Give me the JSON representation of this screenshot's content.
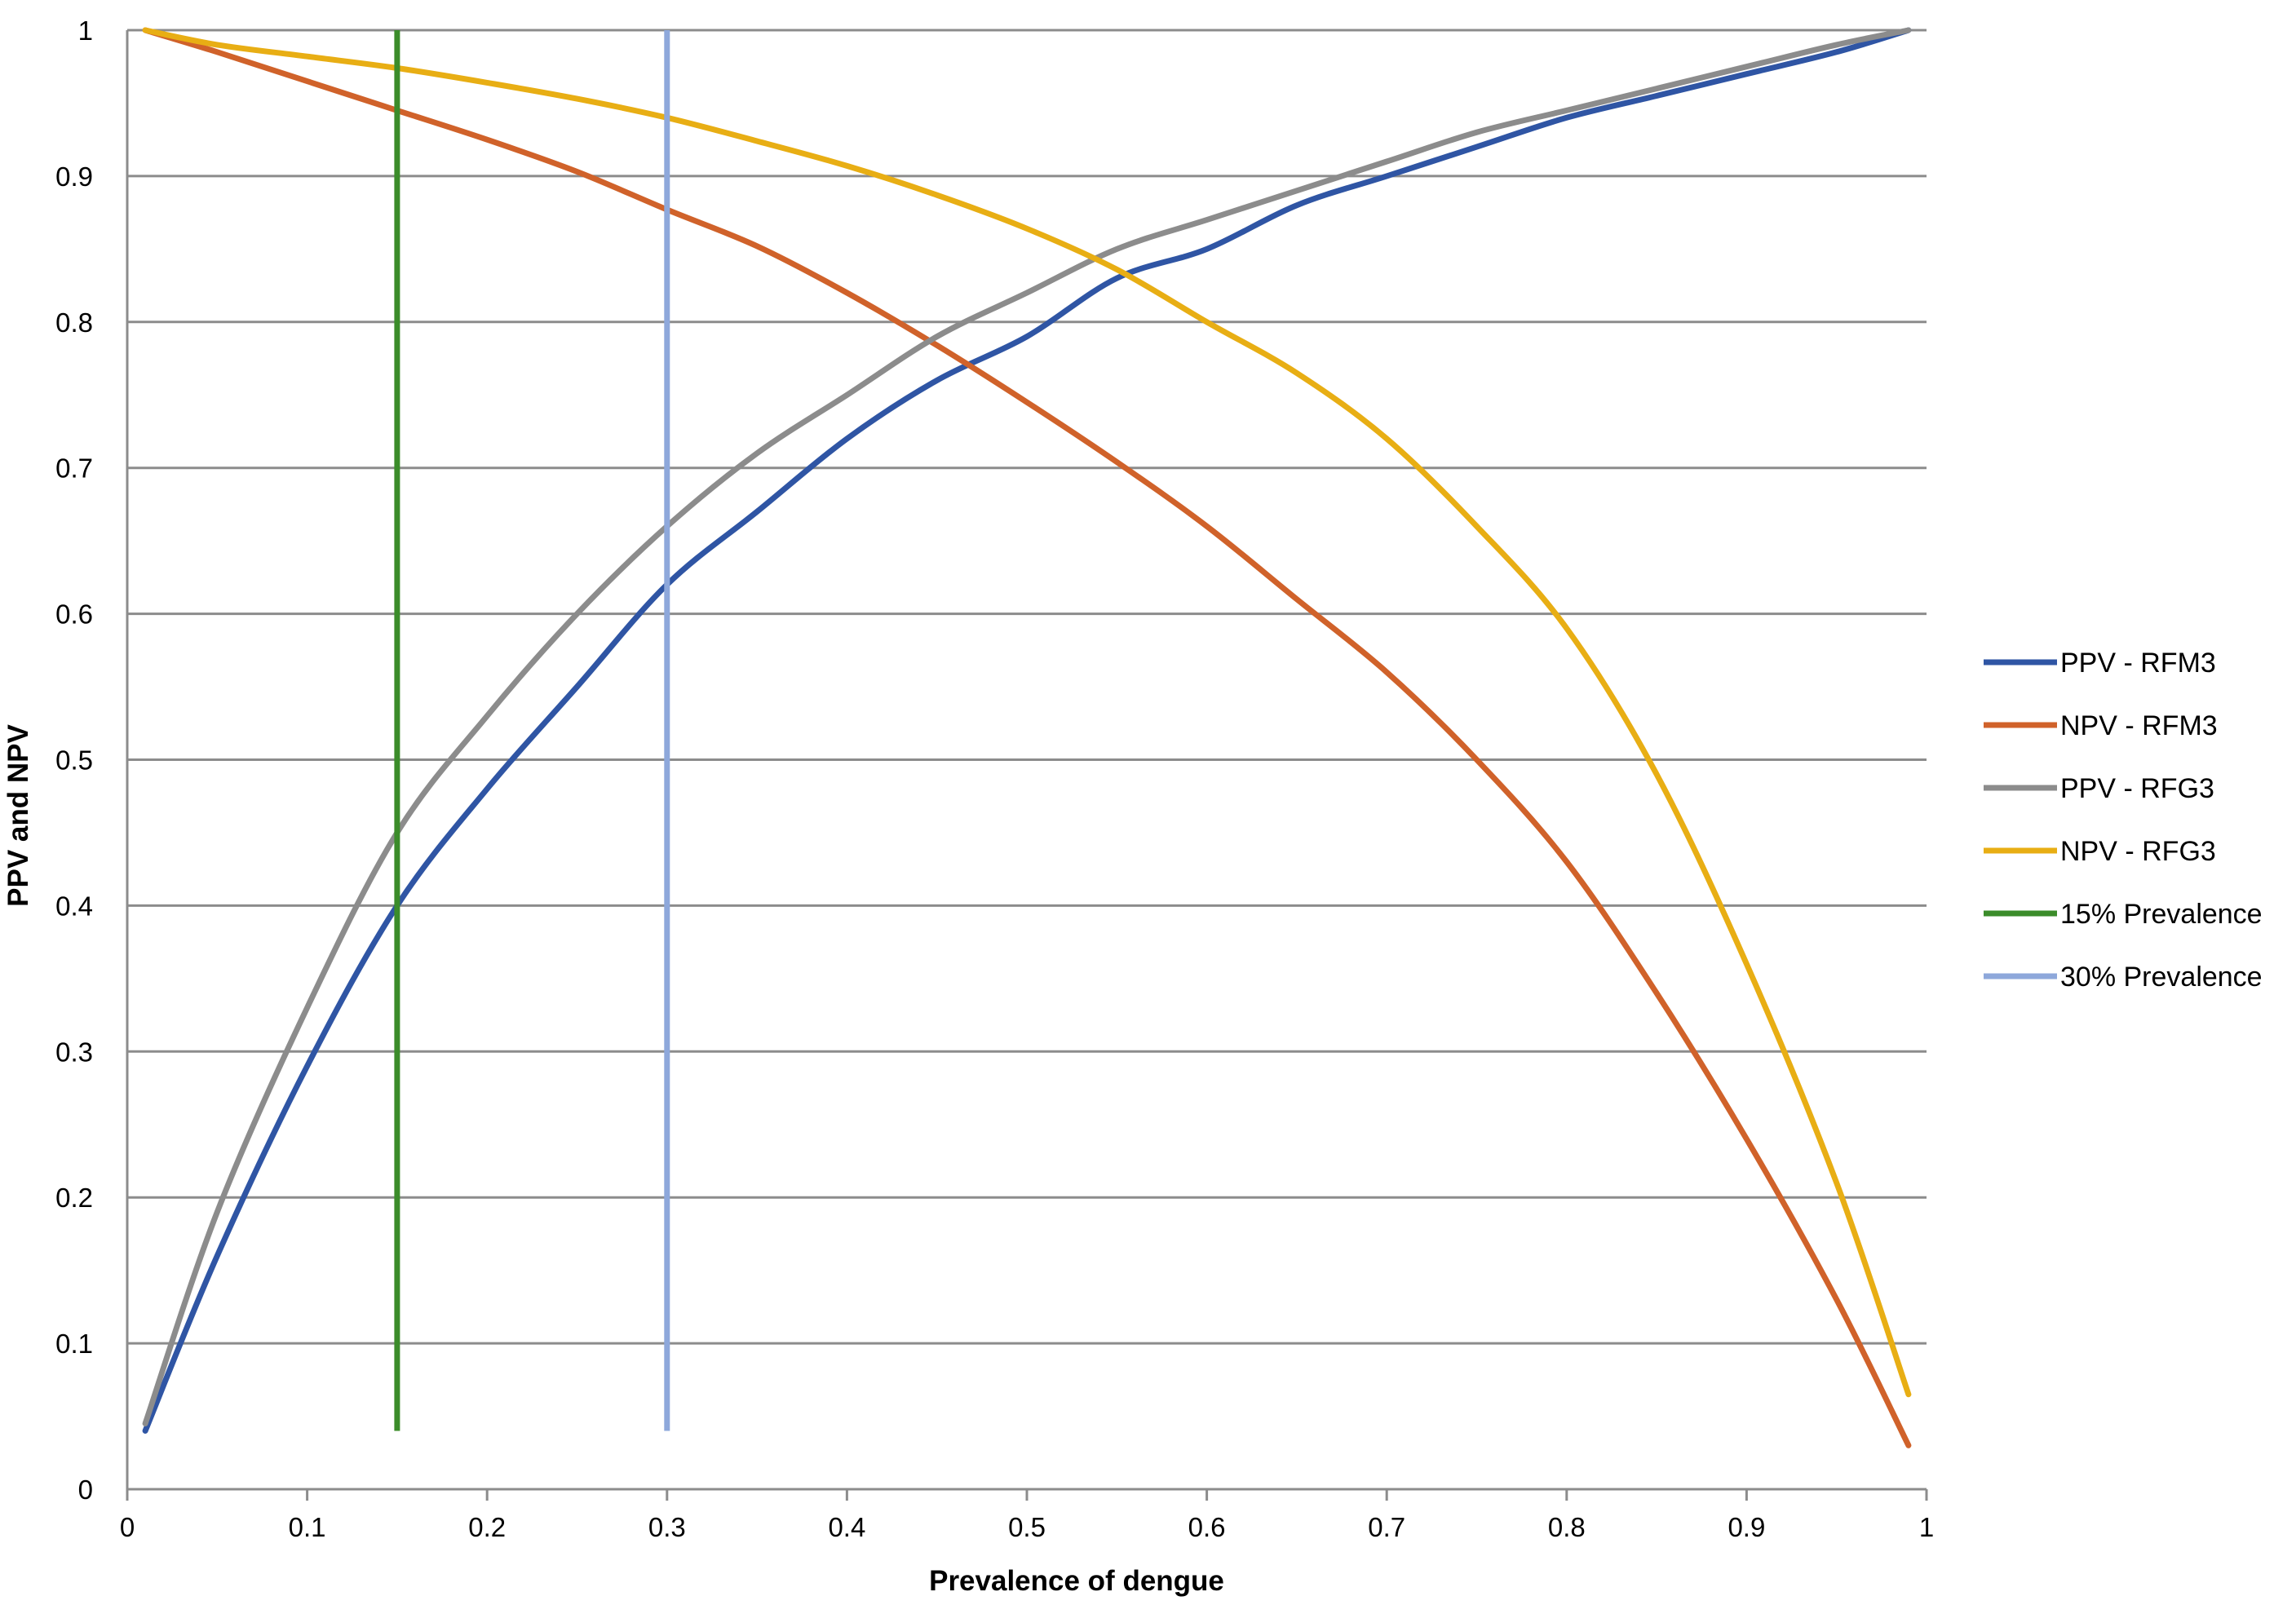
{
  "chart_data": {
    "type": "line",
    "title": "",
    "xlabel": "Prevalence of dengue",
    "ylabel": "PPV and NPV",
    "xlim": [
      0,
      1
    ],
    "ylim": [
      0,
      1
    ],
    "x_ticks": [
      "0",
      "0.1",
      "0.2",
      "0.3",
      "0.4",
      "0.5",
      "0.6",
      "0.7",
      "0.8",
      "0.9",
      "1"
    ],
    "y_ticks": [
      "0",
      "0.1",
      "0.2",
      "0.3",
      "0.4",
      "0.5",
      "0.6",
      "0.7",
      "0.8",
      "0.9",
      "1"
    ],
    "grid": "horizontal",
    "legend_position": "right",
    "x": [
      0.01,
      0.05,
      0.1,
      0.15,
      0.2,
      0.25,
      0.3,
      0.35,
      0.4,
      0.45,
      0.5,
      0.55,
      0.6,
      0.65,
      0.7,
      0.75,
      0.8,
      0.85,
      0.9,
      0.95,
      0.99
    ],
    "series": [
      {
        "name": "PPV - RFM3",
        "color": "#2F55A4",
        "values": [
          0.04,
          0.16,
          0.29,
          0.4,
          0.48,
          0.55,
          0.62,
          0.67,
          0.72,
          0.76,
          0.79,
          0.83,
          0.85,
          0.88,
          0.9,
          0.92,
          0.94,
          0.955,
          0.97,
          0.985,
          1.0
        ]
      },
      {
        "name": "NPV - RFM3",
        "color": "#D0622A",
        "values": [
          1.0,
          0.985,
          0.965,
          0.945,
          0.925,
          0.903,
          0.877,
          0.852,
          0.82,
          0.784,
          0.745,
          0.704,
          0.66,
          0.61,
          0.56,
          0.5,
          0.43,
          0.34,
          0.24,
          0.13,
          0.03
        ]
      },
      {
        "name": "PPV - RFG3",
        "color": "#8C8C8C",
        "values": [
          0.045,
          0.19,
          0.33,
          0.45,
          0.53,
          0.6,
          0.66,
          0.71,
          0.75,
          0.79,
          0.82,
          0.85,
          0.87,
          0.89,
          0.91,
          0.93,
          0.945,
          0.96,
          0.975,
          0.99,
          1.0
        ]
      },
      {
        "name": "NPV - RFG3",
        "color": "#E8AE14",
        "values": [
          1.0,
          0.99,
          0.982,
          0.974,
          0.964,
          0.953,
          0.94,
          0.924,
          0.907,
          0.887,
          0.864,
          0.836,
          0.8,
          0.765,
          0.72,
          0.66,
          0.59,
          0.49,
          0.36,
          0.21,
          0.065
        ]
      }
    ],
    "reference_lines": [
      {
        "name": "15% Prevalence",
        "color": "#3B8C2A",
        "x": 0.15,
        "y_range": [
          0.04,
          1.0
        ]
      },
      {
        "name": "30% Prevalence",
        "color": "#8EA8DB",
        "x": 0.3,
        "y_range": [
          0.04,
          1.0
        ]
      }
    ]
  }
}
